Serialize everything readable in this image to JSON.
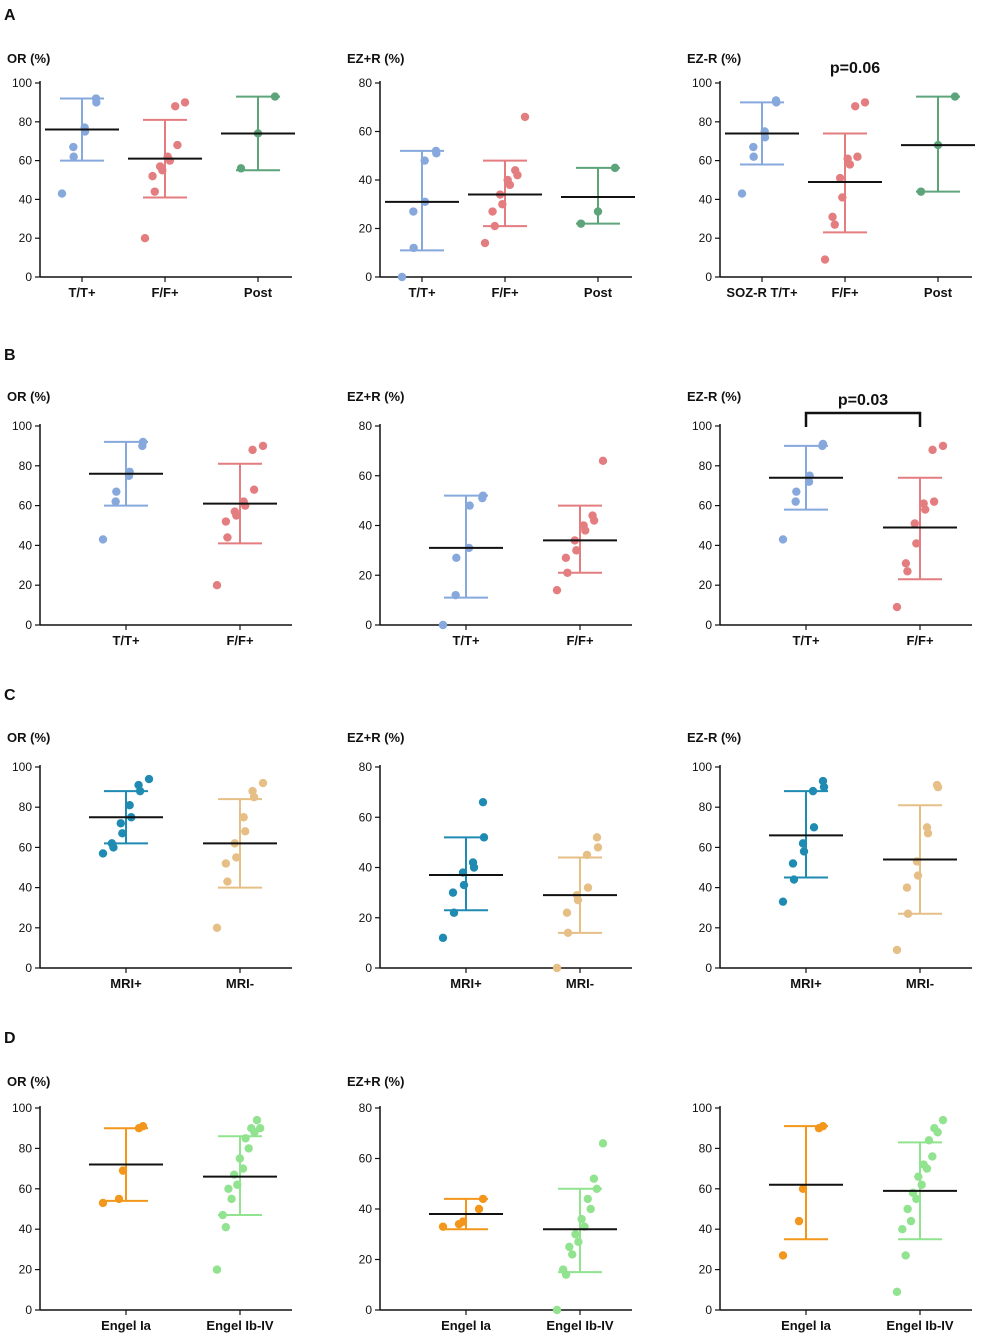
{
  "chart_data": [
    {
      "type": "scatter",
      "panel": "A",
      "ylabel": "OR (%)",
      "ylim": [
        0,
        100
      ],
      "yticks": [
        0,
        20,
        40,
        60,
        80,
        100
      ],
      "categories": [
        "T/T+",
        "F/F+",
        "Post"
      ],
      "colors": [
        "#86a8dc",
        "#e37d7f",
        "#5da47a"
      ],
      "series": [
        {
          "name": "T/T+",
          "mean": 76,
          "sd_low": 60,
          "sd_high": 92,
          "values": [
            43,
            62,
            67,
            75,
            77,
            90,
            92
          ]
        },
        {
          "name": "F/F+",
          "mean": 61,
          "sd_low": 41,
          "sd_high": 81,
          "values": [
            20,
            44,
            52,
            55,
            57,
            60,
            62,
            68,
            88,
            90
          ]
        },
        {
          "name": "Post",
          "mean": 74,
          "sd_low": 55,
          "sd_high": 93,
          "values": [
            56,
            74,
            93
          ]
        }
      ]
    },
    {
      "type": "scatter",
      "panel": "A",
      "ylabel": "EZ+R (%)",
      "ylim": [
        0,
        80
      ],
      "yticks": [
        0,
        20,
        40,
        60,
        80
      ],
      "categories": [
        "T/T+",
        "F/F+",
        "Post"
      ],
      "colors": [
        "#86a8dc",
        "#e37d7f",
        "#5da47a"
      ],
      "series": [
        {
          "name": "T/T+",
          "mean": 31,
          "sd_low": 11,
          "sd_high": 52,
          "values": [
            0,
            12,
            27,
            31,
            48,
            51,
            52
          ]
        },
        {
          "name": "F/F+",
          "mean": 34,
          "sd_low": 21,
          "sd_high": 48,
          "values": [
            14,
            21,
            27,
            30,
            34,
            38,
            40,
            42,
            44,
            66
          ]
        },
        {
          "name": "Post",
          "mean": 33,
          "sd_low": 22,
          "sd_high": 45,
          "values": [
            22,
            27,
            45
          ]
        }
      ]
    },
    {
      "type": "scatter",
      "panel": "A",
      "ylabel": "EZ-R (%)",
      "ylim": [
        0,
        100
      ],
      "yticks": [
        0,
        20,
        40,
        60,
        80,
        100
      ],
      "annotation": "p=0.06",
      "categories": [
        "SOZ-R T/T+",
        "F/F+",
        "Post"
      ],
      "colors": [
        "#86a8dc",
        "#e37d7f",
        "#5da47a"
      ],
      "series": [
        {
          "name": "SOZ-R T/T+",
          "mean": 74,
          "sd_low": 58,
          "sd_high": 90,
          "values": [
            43,
            62,
            67,
            72,
            75,
            90,
            91
          ]
        },
        {
          "name": "F/F+",
          "mean": 49,
          "sd_low": 23,
          "sd_high": 74,
          "values": [
            9,
            27,
            31,
            41,
            51,
            58,
            61,
            62,
            88,
            90
          ]
        },
        {
          "name": "Post",
          "mean": 68,
          "sd_low": 44,
          "sd_high": 93,
          "values": [
            44,
            68,
            93
          ]
        }
      ]
    },
    {
      "type": "scatter",
      "panel": "B",
      "ylabel": "OR (%)",
      "ylim": [
        0,
        100
      ],
      "yticks": [
        0,
        20,
        40,
        60,
        80,
        100
      ],
      "categories": [
        "T/T+",
        "F/F+"
      ],
      "colors": [
        "#86a8dc",
        "#e37d7f"
      ],
      "series": [
        {
          "name": "T/T+",
          "mean": 76,
          "sd_low": 60,
          "sd_high": 92,
          "values": [
            43,
            62,
            67,
            75,
            77,
            90,
            92
          ]
        },
        {
          "name": "F/F+",
          "mean": 61,
          "sd_low": 41,
          "sd_high": 81,
          "values": [
            20,
            44,
            52,
            55,
            57,
            60,
            62,
            68,
            88,
            90
          ]
        }
      ]
    },
    {
      "type": "scatter",
      "panel": "B",
      "ylabel": "EZ+R (%)",
      "ylim": [
        0,
        80
      ],
      "yticks": [
        0,
        20,
        40,
        60,
        80
      ],
      "categories": [
        "T/T+",
        "F/F+"
      ],
      "colors": [
        "#86a8dc",
        "#e37d7f"
      ],
      "series": [
        {
          "name": "T/T+",
          "mean": 31,
          "sd_low": 11,
          "sd_high": 52,
          "values": [
            0,
            12,
            27,
            31,
            48,
            51,
            52
          ]
        },
        {
          "name": "F/F+",
          "mean": 34,
          "sd_low": 21,
          "sd_high": 48,
          "values": [
            14,
            21,
            27,
            30,
            34,
            38,
            40,
            42,
            44,
            66
          ]
        }
      ]
    },
    {
      "type": "scatter",
      "panel": "B",
      "ylabel": "EZ-R (%)",
      "ylim": [
        0,
        100
      ],
      "yticks": [
        0,
        20,
        40,
        60,
        80,
        100
      ],
      "annotation": "p=0.03",
      "categories": [
        "T/T+",
        "F/F+"
      ],
      "colors": [
        "#86a8dc",
        "#e37d7f"
      ],
      "series": [
        {
          "name": "T/T+",
          "mean": 74,
          "sd_low": 58,
          "sd_high": 90,
          "values": [
            43,
            62,
            67,
            72,
            75,
            90,
            91
          ]
        },
        {
          "name": "F/F+",
          "mean": 49,
          "sd_low": 23,
          "sd_high": 74,
          "values": [
            9,
            27,
            31,
            41,
            51,
            58,
            61,
            62,
            88,
            90
          ]
        }
      ]
    },
    {
      "type": "scatter",
      "panel": "C",
      "ylabel": "OR (%)",
      "ylim": [
        0,
        100
      ],
      "yticks": [
        0,
        20,
        40,
        60,
        80,
        100
      ],
      "categories": [
        "MRI+",
        "MRI-"
      ],
      "colors": [
        "#1f8bb3",
        "#e5bf85"
      ],
      "series": [
        {
          "name": "MRI+",
          "mean": 75,
          "sd_low": 62,
          "sd_high": 88,
          "values": [
            57,
            60,
            62,
            67,
            72,
            75,
            81,
            88,
            91,
            94
          ]
        },
        {
          "name": "MRI-",
          "mean": 62,
          "sd_low": 40,
          "sd_high": 84,
          "values": [
            20,
            43,
            52,
            55,
            62,
            68,
            75,
            85,
            88,
            92
          ]
        }
      ]
    },
    {
      "type": "scatter",
      "panel": "C",
      "ylabel": "EZ+R (%)",
      "ylim": [
        0,
        80
      ],
      "yticks": [
        0,
        20,
        40,
        60,
        80
      ],
      "categories": [
        "MRI+",
        "MRI-"
      ],
      "colors": [
        "#1f8bb3",
        "#e5bf85"
      ],
      "series": [
        {
          "name": "MRI+",
          "mean": 37,
          "sd_low": 23,
          "sd_high": 52,
          "values": [
            12,
            22,
            30,
            33,
            38,
            40,
            42,
            52,
            66
          ]
        },
        {
          "name": "MRI-",
          "mean": 29,
          "sd_low": 14,
          "sd_high": 44,
          "values": [
            0,
            14,
            22,
            27,
            29,
            32,
            45,
            48,
            52
          ]
        }
      ]
    },
    {
      "type": "scatter",
      "panel": "C",
      "ylabel": "EZ-R (%)",
      "ylim": [
        0,
        100
      ],
      "yticks": [
        0,
        20,
        40,
        60,
        80,
        100
      ],
      "categories": [
        "MRI+",
        "MRI-"
      ],
      "colors": [
        "#1f8bb3",
        "#e5bf85"
      ],
      "series": [
        {
          "name": "MRI+",
          "mean": 66,
          "sd_low": 45,
          "sd_high": 88,
          "values": [
            33,
            44,
            52,
            58,
            62,
            70,
            88,
            90,
            93
          ]
        },
        {
          "name": "MRI-",
          "mean": 54,
          "sd_low": 27,
          "sd_high": 81,
          "values": [
            9,
            27,
            40,
            46,
            53,
            67,
            70,
            90,
            91
          ]
        }
      ]
    },
    {
      "type": "scatter",
      "panel": "D",
      "ylabel": "OR (%)",
      "ylim": [
        0,
        100
      ],
      "yticks": [
        0,
        20,
        40,
        60,
        80,
        100
      ],
      "categories": [
        "Engel Ia",
        "Engel Ib-IV"
      ],
      "colors": [
        "#f2961c",
        "#91e38f"
      ],
      "series": [
        {
          "name": "Engel Ia",
          "mean": 72,
          "sd_low": 54,
          "sd_high": 90,
          "values": [
            53,
            55,
            69,
            90,
            91
          ]
        },
        {
          "name": "Engel Ib-IV",
          "mean": 66,
          "sd_low": 47,
          "sd_high": 86,
          "values": [
            20,
            41,
            47,
            55,
            60,
            62,
            67,
            70,
            75,
            80,
            85,
            88,
            90,
            90,
            94
          ]
        }
      ]
    },
    {
      "type": "scatter",
      "panel": "D",
      "ylabel": "EZ+R (%)",
      "ylim": [
        0,
        80
      ],
      "yticks": [
        0,
        20,
        40,
        60,
        80
      ],
      "categories": [
        "Engel Ia",
        "Engel Ib-IV"
      ],
      "colors": [
        "#f2961c",
        "#91e38f"
      ],
      "series": [
        {
          "name": "Engel Ia",
          "mean": 38,
          "sd_low": 32,
          "sd_high": 44,
          "values": [
            33,
            34,
            35,
            40,
            44
          ]
        },
        {
          "name": "Engel Ib-IV",
          "mean": 32,
          "sd_low": 15,
          "sd_high": 48,
          "values": [
            0,
            14,
            16,
            22,
            25,
            27,
            30,
            33,
            36,
            40,
            44,
            48,
            52,
            66
          ]
        }
      ]
    },
    {
      "type": "scatter",
      "panel": "D",
      "ylabel": "",
      "ylim": [
        0,
        100
      ],
      "yticks": [
        0,
        20,
        40,
        60,
        80,
        100
      ],
      "categories": [
        "Engel Ia",
        "Engel Ib-IV"
      ],
      "colors": [
        "#f2961c",
        "#91e38f"
      ],
      "series": [
        {
          "name": "Engel Ia",
          "mean": 62,
          "sd_low": 35,
          "sd_high": 91,
          "values": [
            27,
            44,
            60,
            90,
            91
          ]
        },
        {
          "name": "Engel Ib-IV",
          "mean": 59,
          "sd_low": 35,
          "sd_high": 83,
          "values": [
            9,
            27,
            40,
            44,
            50,
            55,
            58,
            62,
            66,
            70,
            72,
            76,
            84,
            88,
            90,
            94
          ]
        }
      ]
    }
  ]
}
